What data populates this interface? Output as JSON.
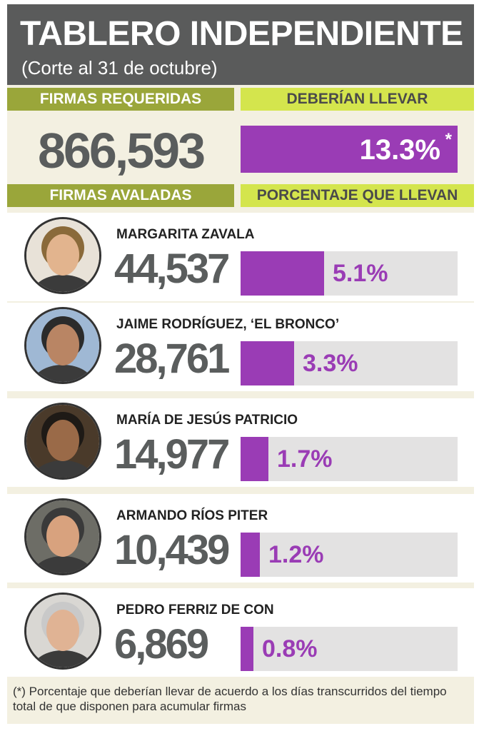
{
  "header": {
    "title": "TABLERO INDEPENDIENTE",
    "subtitle": "(Corte al 31 de octubre)"
  },
  "summary": {
    "required_label": "FIRMAS REQUERIDAS",
    "required_value": "866,593",
    "expected_label": "DEBERÍAN LLEVAR",
    "expected_value": "13.3%",
    "expected_mark": "*"
  },
  "columns": {
    "signatures_label": "FIRMAS AVALADAS",
    "percent_label": "PORCENTAJE QUE LLEVAN"
  },
  "colors": {
    "header_bg": "#5a5b5b",
    "olive_band": "#9aa63a",
    "lime_band": "#d4e54d",
    "purple": "#9a3cb5",
    "track": "#e3e2e2",
    "panel_bg": "#f3f0e1"
  },
  "chart_data": {
    "type": "bar",
    "title": "",
    "xlabel": "",
    "ylabel": "",
    "ylim": [
      0,
      13.3
    ],
    "reference_value": 13.3,
    "categories": [
      "MARGARITA ZAVALA",
      "JAIME RODRÍGUEZ, ‘EL BRONCO’",
      "MARÍA DE JESÚS PATRICIO",
      "ARMANDO RÍOS PITER",
      "PEDRO FERRIZ DE CON"
    ],
    "signatures": [
      "44,537",
      "28,761",
      "14,977",
      "10,439",
      "6,869"
    ],
    "values": [
      5.1,
      3.3,
      1.7,
      1.2,
      0.8
    ],
    "value_labels": [
      "5.1%",
      "3.3%",
      "1.7%",
      "1.2%",
      "0.8%"
    ]
  },
  "footnote": "(*) Porcentaje que deberían llevar de acuerdo a los días transcurridos del tiempo total de que disponen para acumular firmas"
}
